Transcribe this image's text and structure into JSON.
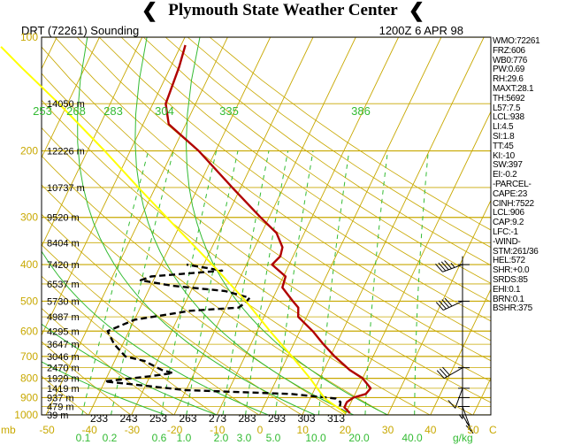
{
  "banner": {
    "title": "Plymouth State Weather Center"
  },
  "chart_data": {
    "type": "line",
    "title_left": "DRT (72261) Sounding",
    "title_right": "1200Z  6 APR 98",
    "x_axis_unit": "C",
    "x_axis_prefix": "mb",
    "mixing_ratio_unit": "g/kg",
    "temperature_ticks": [
      -50,
      -40,
      -30,
      -20,
      -10,
      0,
      10,
      20,
      30,
      40,
      50
    ],
    "temperature_range": [
      -50,
      50
    ],
    "pressure_ticks": [
      100,
      200,
      300,
      400,
      500,
      600,
      700,
      800,
      900,
      1000
    ],
    "pressure_range": [
      100,
      1000
    ],
    "theta_labels_top": [
      {
        "label": "253",
        "x": "253"
      },
      {
        "label": "268",
        "x": "268"
      },
      {
        "label": "283",
        "x": "283"
      },
      {
        "label": "304",
        "x": "304"
      },
      {
        "label": "335",
        "x": "335"
      },
      {
        "label": "386",
        "x": "386"
      }
    ],
    "theta_labels_bottom": [
      "233",
      "243",
      "253",
      "263",
      "273",
      "283",
      "293",
      "303",
      "313"
    ],
    "mixing_ratio_labels": [
      "0.1",
      "0.2",
      "0.6",
      "1.0",
      "2.0",
      "3.0",
      "5.0",
      "10.0",
      "20.0",
      "40.0"
    ],
    "height_labels": [
      {
        "p": 150,
        "label": "14050 m"
      },
      {
        "p": 200,
        "label": "12226 m"
      },
      {
        "p": 250,
        "label": "10737 m"
      },
      {
        "p": 300,
        "label": "9520 m"
      },
      {
        "p": 350,
        "label": "8404 m"
      },
      {
        "p": 400,
        "label": "7420 m"
      },
      {
        "p": 450,
        "label": "6537 m"
      },
      {
        "p": 500,
        "label": "5730 m"
      },
      {
        "p": 550,
        "label": "4987 m"
      },
      {
        "p": 600,
        "label": "4295 m"
      },
      {
        "p": 650,
        "label": "3647 m"
      },
      {
        "p": 700,
        "label": "3046 m"
      },
      {
        "p": 750,
        "label": "2470 m"
      },
      {
        "p": 800,
        "label": "1929 m"
      },
      {
        "p": 850,
        "label": "1419 m"
      },
      {
        "p": 900,
        "label": "937 m"
      },
      {
        "p": 950,
        "label": "479 m"
      },
      {
        "p": 1000,
        "label": "39 m"
      }
    ],
    "series": [
      {
        "name": "temperature",
        "color": "#b00000",
        "points": [
          {
            "p": 990,
            "t": 21.0
          },
          {
            "p": 955,
            "t": 19.0
          },
          {
            "p": 925,
            "t": 19.0
          },
          {
            "p": 900,
            "t": 20.0
          },
          {
            "p": 880,
            "t": 22.5
          },
          {
            "p": 850,
            "t": 23.0
          },
          {
            "p": 800,
            "t": 20.0
          },
          {
            "p": 760,
            "t": 16.0
          },
          {
            "p": 700,
            "t": 11.0
          },
          {
            "p": 650,
            "t": 7.0
          },
          {
            "p": 600,
            "t": 3.0
          },
          {
            "p": 550,
            "t": -2.0
          },
          {
            "p": 520,
            "t": -3.0
          },
          {
            "p": 500,
            "t": -5.0
          },
          {
            "p": 460,
            "t": -9.0
          },
          {
            "p": 430,
            "t": -9.5
          },
          {
            "p": 400,
            "t": -14.0
          },
          {
            "p": 380,
            "t": -13.0
          },
          {
            "p": 360,
            "t": -13.5
          },
          {
            "p": 330,
            "t": -16.5
          },
          {
            "p": 300,
            "t": -22.0
          },
          {
            "p": 250,
            "t": -32.0
          },
          {
            "p": 200,
            "t": -44.0
          },
          {
            "p": 170,
            "t": -54.0
          },
          {
            "p": 150,
            "t": -57.0
          },
          {
            "p": 120,
            "t": -58.0
          },
          {
            "p": 105,
            "t": -59.0
          }
        ]
      },
      {
        "name": "dewpoint",
        "color": "#000000",
        "points": [
          {
            "p": 990,
            "t": 20.0
          },
          {
            "p": 960,
            "t": 18.0
          },
          {
            "p": 925,
            "t": 17.5
          },
          {
            "p": 905,
            "t": 16.0
          },
          {
            "p": 880,
            "t": 5.0
          },
          {
            "p": 860,
            "t": -20.0
          },
          {
            "p": 815,
            "t": -40.0
          },
          {
            "p": 790,
            "t": -30.0
          },
          {
            "p": 775,
            "t": -25.0
          },
          {
            "p": 760,
            "t": -28.0
          },
          {
            "p": 720,
            "t": -33.0
          },
          {
            "p": 700,
            "t": -38.0
          },
          {
            "p": 650,
            "t": -42.0
          },
          {
            "p": 600,
            "t": -45.0
          },
          {
            "p": 560,
            "t": -40.0
          },
          {
            "p": 530,
            "t": -28.0
          },
          {
            "p": 520,
            "t": -17.0
          },
          {
            "p": 505,
            "t": -16.0
          },
          {
            "p": 490,
            "t": -15.5
          },
          {
            "p": 470,
            "t": -22.0
          },
          {
            "p": 455,
            "t": -35.0
          },
          {
            "p": 440,
            "t": -43.0
          },
          {
            "p": 430,
            "t": -41.0
          },
          {
            "p": 415,
            "t": -25.0
          },
          {
            "p": 400,
            "t": -34.0
          }
        ]
      },
      {
        "name": "parcel",
        "color": "#ffff00",
        "points": [
          {
            "p": 990,
            "t": 20.0
          },
          {
            "p": 906,
            "t": 13.5
          },
          {
            "p": 850,
            "t": 10.5
          },
          {
            "p": 800,
            "t": 7.7
          },
          {
            "p": 700,
            "t": 1.0
          },
          {
            "p": 600,
            "t": -7.0
          },
          {
            "p": 500,
            "t": -16.0
          },
          {
            "p": 400,
            "t": -28.0
          },
          {
            "p": 300,
            "t": -44.0
          },
          {
            "p": 250,
            "t": -54.0
          },
          {
            "p": 200,
            "t": -66.0
          },
          {
            "p": 150,
            "t": -82.0
          },
          {
            "p": 120,
            "t": -95.0
          },
          {
            "p": 106,
            "t": -102.0
          }
        ]
      }
    ],
    "winds": [
      {
        "p": 400,
        "dir": 250,
        "kt": 45
      },
      {
        "p": 500,
        "dir": 245,
        "kt": 40
      },
      {
        "p": 750,
        "dir": 240,
        "kt": 30
      },
      {
        "p": 850,
        "dir": 200,
        "kt": 10
      },
      {
        "p": 900,
        "dir": 180,
        "kt": 5
      },
      {
        "p": 950,
        "dir": 160,
        "kt": 5
      },
      {
        "p": 1000,
        "dir": 150,
        "kt": 10
      }
    ],
    "grid": true
  },
  "indices": [
    "WMO:72261",
    "FRZ:606",
    "WB0:776",
    "PW:0.69",
    "RH:29.6",
    "MAXT:28.1",
    "TH:5692",
    "L57:7.5",
    "LCL:938",
    "LI:4.5",
    "SI:1.8",
    "TT:45",
    "KI:-10",
    "SW:397",
    "EI:-0.2",
    "-PARCEL-",
    "CAPE:23",
    "CINH:7522",
    "LCL:906",
    "CAP:9.2",
    "LFC:-1",
    "-WIND-",
    "STM:261/36",
    "HEL:572",
    "SHR:+0.0",
    "SRDS:85",
    "EHI:0.1",
    "BRN:0.1",
    "BSHR:375"
  ]
}
